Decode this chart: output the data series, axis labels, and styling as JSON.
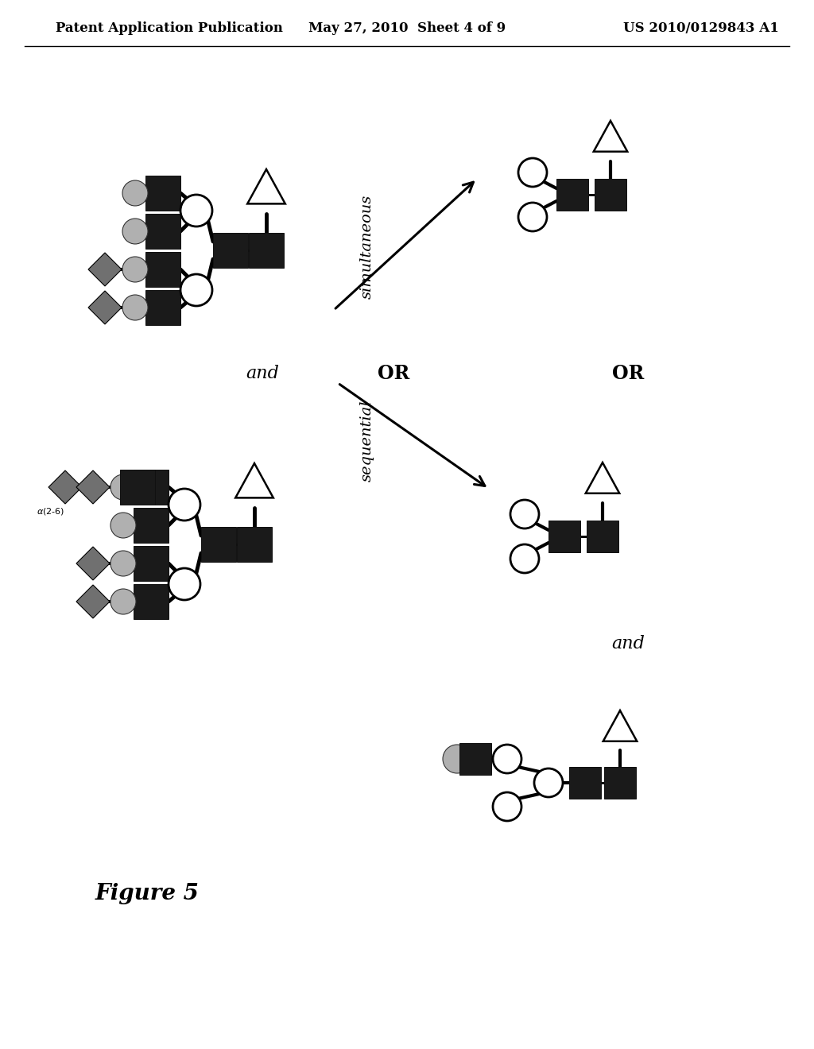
{
  "title_left": "Patent Application Publication",
  "title_mid": "May 27, 2010  Sheet 4 of 9",
  "title_right": "US 2010/0129843 A1",
  "figure_label": "Figure 5",
  "text_simultaneous": "simultaneous",
  "text_sequential": "sequential",
  "text_and1": "and",
  "text_or1": "OR",
  "text_or2": "OR",
  "text_and2": "and",
  "bg_color": "#ffffff",
  "dark_color": "#1a1a1a",
  "gray_circle_color": "#b0b0b0",
  "diamond_color": "#707070",
  "line_color": "#000000"
}
